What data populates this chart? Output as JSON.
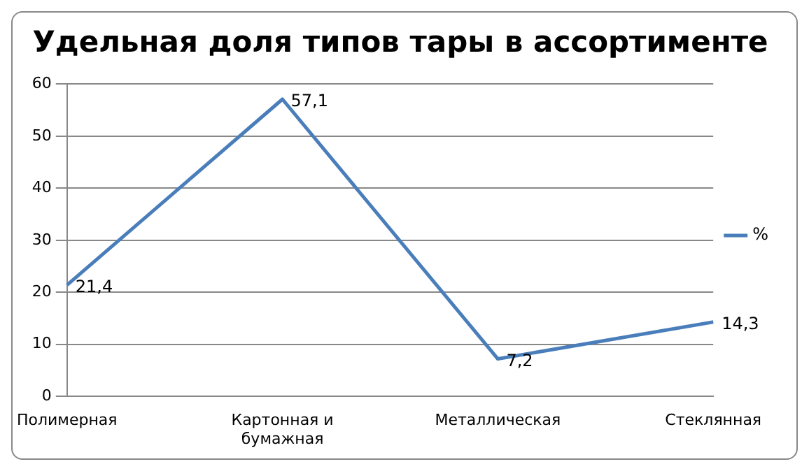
{
  "chart_data": {
    "type": "line",
    "title": "Удельная доля типов тары в ассортименте",
    "categories": [
      "Полимерная",
      "Картонная и бумажная",
      "Металлическая",
      "Стеклянная"
    ],
    "series": [
      {
        "name": "%",
        "color": "#4a7ebb",
        "values": [
          21.4,
          57.1,
          7.2,
          14.3
        ],
        "value_labels": [
          "21,4",
          "57,1",
          "7,2",
          "14,3"
        ]
      }
    ],
    "ylim": [
      0,
      60
    ],
    "yticks": [
      0,
      10,
      20,
      30,
      40,
      50,
      60
    ],
    "grid": "y",
    "legend": "right",
    "marker": "none",
    "line_style": "solid"
  }
}
